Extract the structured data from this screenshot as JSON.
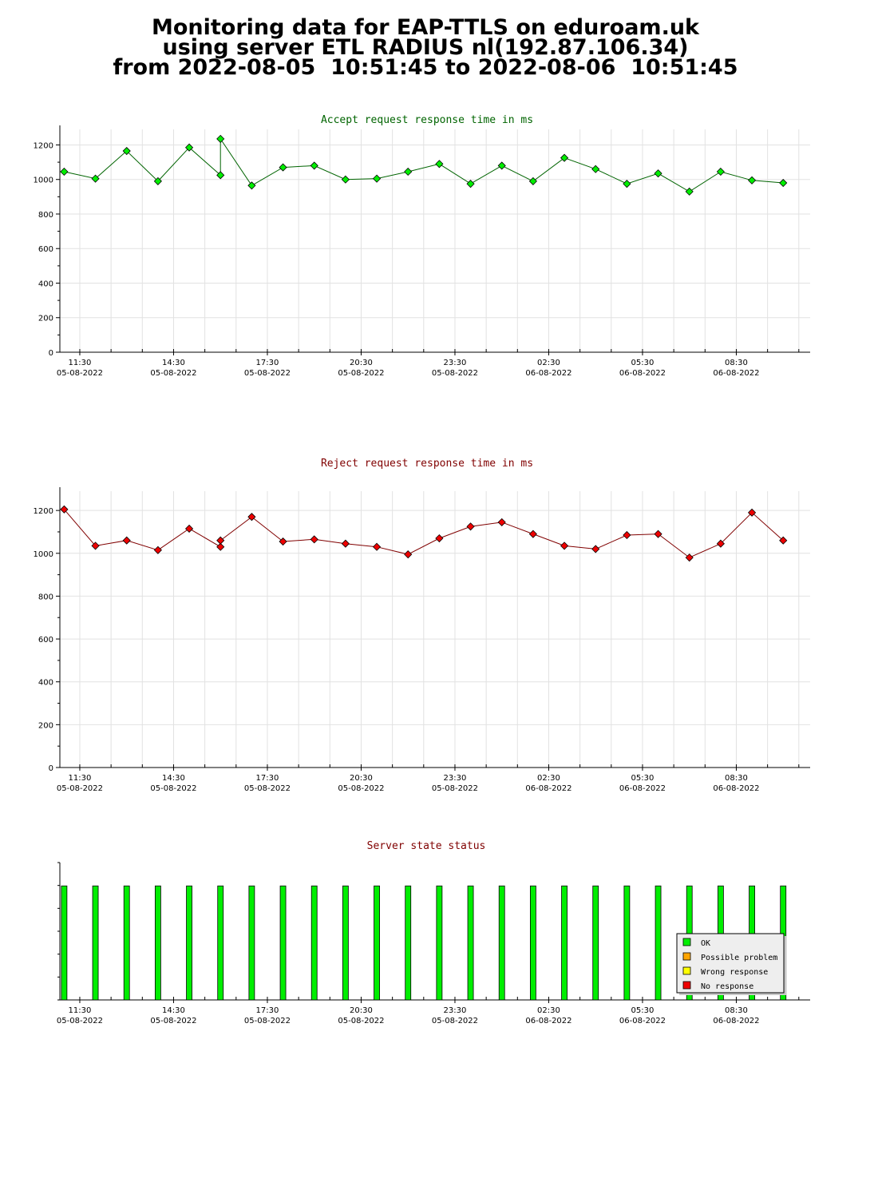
{
  "page": {
    "title_lines": [
      "Monitoring data for EAP-TTLS on eduroam.uk",
      "using server ETL RADIUS nl(192.87.106.34)",
      "from 2022-08-05  10:51:45 to 2022-08-06  10:51:45"
    ]
  },
  "colors": {
    "accept_line": "#006400",
    "accept_marker": "#00ee00",
    "reject_line": "#800000",
    "reject_marker": "#ee0000",
    "status_title": "#800000",
    "ok": "#00ee00",
    "possible_problem": "#ffa500",
    "wrong_response": "#ffff00",
    "no_response": "#ee0000",
    "grid": "#e2e2e2"
  },
  "chart_data": [
    {
      "type": "line",
      "title": "Accept request response time in ms",
      "ylim": [
        0,
        1290
      ],
      "yticks": [
        0,
        200,
        400,
        600,
        800,
        1000,
        1200
      ],
      "x_start": "2022-08-05 10:51:45",
      "x_end": "2022-08-06 10:51:45",
      "x_tick_labels": [
        {
          "time": "11:30",
          "date": "05-08-2022"
        },
        {
          "time": "14:30",
          "date": "05-08-2022"
        },
        {
          "time": "17:30",
          "date": "05-08-2022"
        },
        {
          "time": "20:30",
          "date": "05-08-2022"
        },
        {
          "time": "23:30",
          "date": "05-08-2022"
        },
        {
          "time": "02:30",
          "date": "06-08-2022"
        },
        {
          "time": "05:30",
          "date": "06-08-2022"
        },
        {
          "time": "08:30",
          "date": "06-08-2022"
        }
      ],
      "grid": true,
      "points": [
        {
          "x": "2022-08-05 11:00",
          "y": 1045
        },
        {
          "x": "2022-08-05 12:00",
          "y": 1005
        },
        {
          "x": "2022-08-05 13:00",
          "y": 1165
        },
        {
          "x": "2022-08-05 14:00",
          "y": 990
        },
        {
          "x": "2022-08-05 15:00",
          "y": 1185
        },
        {
          "x": "2022-08-05 16:00",
          "y": 1025
        },
        {
          "x": "2022-08-05 16:00",
          "y": 1235
        },
        {
          "x": "2022-08-05 17:00",
          "y": 965
        },
        {
          "x": "2022-08-05 18:00",
          "y": 1070
        },
        {
          "x": "2022-08-05 19:00",
          "y": 1080
        },
        {
          "x": "2022-08-05 20:00",
          "y": 1000
        },
        {
          "x": "2022-08-05 21:00",
          "y": 1005
        },
        {
          "x": "2022-08-05 22:00",
          "y": 1045
        },
        {
          "x": "2022-08-05 23:00",
          "y": 1090
        },
        {
          "x": "2022-08-06 00:00",
          "y": 975
        },
        {
          "x": "2022-08-06 01:00",
          "y": 1080
        },
        {
          "x": "2022-08-06 02:00",
          "y": 990
        },
        {
          "x": "2022-08-06 03:00",
          "y": 1125
        },
        {
          "x": "2022-08-06 04:00",
          "y": 1060
        },
        {
          "x": "2022-08-06 05:00",
          "y": 975
        },
        {
          "x": "2022-08-06 06:00",
          "y": 1035
        },
        {
          "x": "2022-08-06 07:00",
          "y": 930
        },
        {
          "x": "2022-08-06 08:00",
          "y": 1045
        },
        {
          "x": "2022-08-06 09:00",
          "y": 995
        },
        {
          "x": "2022-08-06 10:00",
          "y": 980
        }
      ]
    },
    {
      "type": "line",
      "title": "Reject request response time in ms",
      "ylim": [
        0,
        1290
      ],
      "yticks": [
        0,
        200,
        400,
        600,
        800,
        1000,
        1200
      ],
      "x_start": "2022-08-05 10:51:45",
      "x_end": "2022-08-06 10:51:45",
      "x_tick_labels": [
        {
          "time": "11:30",
          "date": "05-08-2022"
        },
        {
          "time": "14:30",
          "date": "05-08-2022"
        },
        {
          "time": "17:30",
          "date": "05-08-2022"
        },
        {
          "time": "20:30",
          "date": "05-08-2022"
        },
        {
          "time": "23:30",
          "date": "05-08-2022"
        },
        {
          "time": "02:30",
          "date": "06-08-2022"
        },
        {
          "time": "05:30",
          "date": "06-08-2022"
        },
        {
          "time": "08:30",
          "date": "06-08-2022"
        }
      ],
      "grid": true,
      "points": [
        {
          "x": "2022-08-05 11:00",
          "y": 1205
        },
        {
          "x": "2022-08-05 12:00",
          "y": 1035
        },
        {
          "x": "2022-08-05 13:00",
          "y": 1060
        },
        {
          "x": "2022-08-05 14:00",
          "y": 1015
        },
        {
          "x": "2022-08-05 15:00",
          "y": 1115
        },
        {
          "x": "2022-08-05 16:00",
          "y": 1030
        },
        {
          "x": "2022-08-05 16:00",
          "y": 1060
        },
        {
          "x": "2022-08-05 17:00",
          "y": 1170
        },
        {
          "x": "2022-08-05 18:00",
          "y": 1055
        },
        {
          "x": "2022-08-05 19:00",
          "y": 1065
        },
        {
          "x": "2022-08-05 20:00",
          "y": 1045
        },
        {
          "x": "2022-08-05 21:00",
          "y": 1030
        },
        {
          "x": "2022-08-05 22:00",
          "y": 995
        },
        {
          "x": "2022-08-05 23:00",
          "y": 1070
        },
        {
          "x": "2022-08-06 00:00",
          "y": 1125
        },
        {
          "x": "2022-08-06 01:00",
          "y": 1145
        },
        {
          "x": "2022-08-06 02:00",
          "y": 1090
        },
        {
          "x": "2022-08-06 03:00",
          "y": 1035
        },
        {
          "x": "2022-08-06 04:00",
          "y": 1020
        },
        {
          "x": "2022-08-06 05:00",
          "y": 1085
        },
        {
          "x": "2022-08-06 06:00",
          "y": 1090
        },
        {
          "x": "2022-08-06 07:00",
          "y": 980
        },
        {
          "x": "2022-08-06 08:00",
          "y": 1045
        },
        {
          "x": "2022-08-06 09:00",
          "y": 1190
        },
        {
          "x": "2022-08-06 10:00",
          "y": 1060
        }
      ]
    },
    {
      "type": "bar",
      "title": "Server state status",
      "x_start": "2022-08-05 10:51:45",
      "x_end": "2022-08-06 10:51:45",
      "x_tick_labels": [
        {
          "time": "11:30",
          "date": "05-08-2022"
        },
        {
          "time": "14:30",
          "date": "05-08-2022"
        },
        {
          "time": "17:30",
          "date": "05-08-2022"
        },
        {
          "time": "20:30",
          "date": "05-08-2022"
        },
        {
          "time": "23:30",
          "date": "05-08-2022"
        },
        {
          "time": "02:30",
          "date": "06-08-2022"
        },
        {
          "time": "05:30",
          "date": "06-08-2022"
        },
        {
          "time": "08:30",
          "date": "06-08-2022"
        }
      ],
      "bar_level": 0.83,
      "bar_state": "OK",
      "bars": [
        "2022-08-05 11:00",
        "2022-08-05 12:00",
        "2022-08-05 13:00",
        "2022-08-05 14:00",
        "2022-08-05 15:00",
        "2022-08-05 16:00",
        "2022-08-05 17:00",
        "2022-08-05 18:00",
        "2022-08-05 19:00",
        "2022-08-05 20:00",
        "2022-08-05 21:00",
        "2022-08-05 22:00",
        "2022-08-05 23:00",
        "2022-08-06 00:00",
        "2022-08-06 01:00",
        "2022-08-06 02:00",
        "2022-08-06 03:00",
        "2022-08-06 04:00",
        "2022-08-06 05:00",
        "2022-08-06 06:00",
        "2022-08-06 07:00",
        "2022-08-06 08:00",
        "2022-08-06 09:00",
        "2022-08-06 10:00"
      ],
      "legend_position": "bottom-right",
      "legend": [
        {
          "label": "OK",
          "color": "#00ee00"
        },
        {
          "label": "Possible problem",
          "color": "#ffa500"
        },
        {
          "label": "Wrong response",
          "color": "#ffff00"
        },
        {
          "label": "No response",
          "color": "#ee0000"
        }
      ]
    }
  ]
}
